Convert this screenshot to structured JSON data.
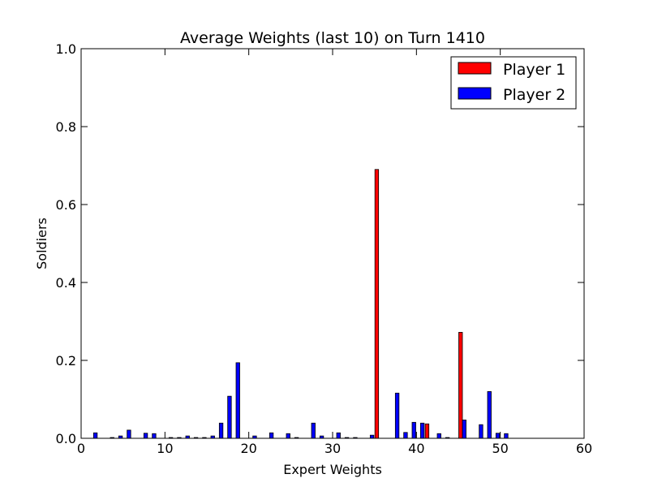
{
  "chart_data": {
    "type": "bar",
    "title": "Average Weights (last 10) on Turn 1410",
    "xlabel": "Expert Weights",
    "ylabel": "Soldiers",
    "xlim": [
      0,
      60
    ],
    "ylim": [
      0,
      1.0
    ],
    "xticks": [
      "0",
      "10",
      "20",
      "30",
      "40",
      "50",
      "60"
    ],
    "yticks": [
      "0.0",
      "0.2",
      "0.4",
      "0.6",
      "0.8",
      "1.0"
    ],
    "legend_position": "top-right",
    "series": [
      {
        "name": "Player 1",
        "color": "#ff0000",
        "points": [
          {
            "x": 35,
            "y": 0.69
          },
          {
            "x": 41,
            "y": 0.037
          },
          {
            "x": 45,
            "y": 0.272
          }
        ]
      },
      {
        "name": "Player 2",
        "color": "#0000ff",
        "points": [
          {
            "x": 1,
            "y": 0.014
          },
          {
            "x": 3,
            "y": 0.002
          },
          {
            "x": 4,
            "y": 0.006
          },
          {
            "x": 5,
            "y": 0.021
          },
          {
            "x": 7,
            "y": 0.013
          },
          {
            "x": 8,
            "y": 0.012
          },
          {
            "x": 10,
            "y": 0.002
          },
          {
            "x": 11,
            "y": 0.002
          },
          {
            "x": 12,
            "y": 0.006
          },
          {
            "x": 13,
            "y": 0.002
          },
          {
            "x": 14,
            "y": 0.002
          },
          {
            "x": 15,
            "y": 0.006
          },
          {
            "x": 16,
            "y": 0.039
          },
          {
            "x": 17,
            "y": 0.108
          },
          {
            "x": 18,
            "y": 0.194
          },
          {
            "x": 20,
            "y": 0.006
          },
          {
            "x": 22,
            "y": 0.014
          },
          {
            "x": 24,
            "y": 0.012
          },
          {
            "x": 25,
            "y": 0.002
          },
          {
            "x": 27,
            "y": 0.039
          },
          {
            "x": 28,
            "y": 0.006
          },
          {
            "x": 30,
            "y": 0.014
          },
          {
            "x": 31,
            "y": 0.002
          },
          {
            "x": 32,
            "y": 0.002
          },
          {
            "x": 34,
            "y": 0.008
          },
          {
            "x": 37,
            "y": 0.116
          },
          {
            "x": 38,
            "y": 0.015
          },
          {
            "x": 39,
            "y": 0.041
          },
          {
            "x": 40,
            "y": 0.039
          },
          {
            "x": 42,
            "y": 0.012
          },
          {
            "x": 43,
            "y": 0.002
          },
          {
            "x": 45,
            "y": 0.047
          },
          {
            "x": 47,
            "y": 0.035
          },
          {
            "x": 48,
            "y": 0.12
          },
          {
            "x": 49,
            "y": 0.013
          },
          {
            "x": 50,
            "y": 0.012
          }
        ]
      }
    ]
  }
}
